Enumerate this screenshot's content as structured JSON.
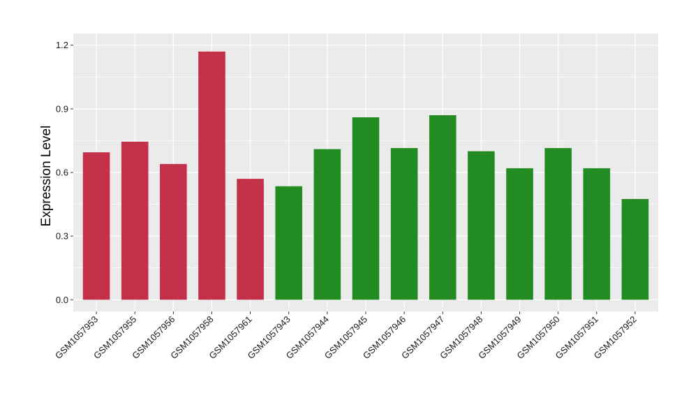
{
  "chart_data": {
    "type": "bar",
    "title": "",
    "xlabel": "",
    "ylabel": "Expression Level",
    "ylim": [
      -0.055,
      1.255
    ],
    "yticks": [
      0.0,
      0.3,
      0.6,
      0.9,
      1.2
    ],
    "ytick_labels": [
      "0.0",
      "0.3",
      "0.6",
      "0.9",
      "1.2"
    ],
    "grid": true,
    "legend": "none",
    "panel_background": "#EBEBEB",
    "grid_color": "#FFFFFF",
    "categories": [
      "GSM1057953",
      "GSM1057955",
      "GSM1057956",
      "GSM1057958",
      "GSM1057961",
      "GSM1057943",
      "GSM1057944",
      "GSM1057945",
      "GSM1057946",
      "GSM1057947",
      "GSM1057948",
      "GSM1057949",
      "GSM1057950",
      "GSM1057951",
      "GSM1057952"
    ],
    "values": [
      0.695,
      0.745,
      0.64,
      1.17,
      0.57,
      0.535,
      0.71,
      0.86,
      0.715,
      0.87,
      0.7,
      0.62,
      0.715,
      0.62,
      0.475
    ],
    "bar_colors": [
      "#C3304A",
      "#C3304A",
      "#C3304A",
      "#C3304A",
      "#C3304A",
      "#228B22",
      "#228B22",
      "#228B22",
      "#228B22",
      "#228B22",
      "#228B22",
      "#228B22",
      "#228B22",
      "#228B22",
      "#228B22"
    ]
  }
}
